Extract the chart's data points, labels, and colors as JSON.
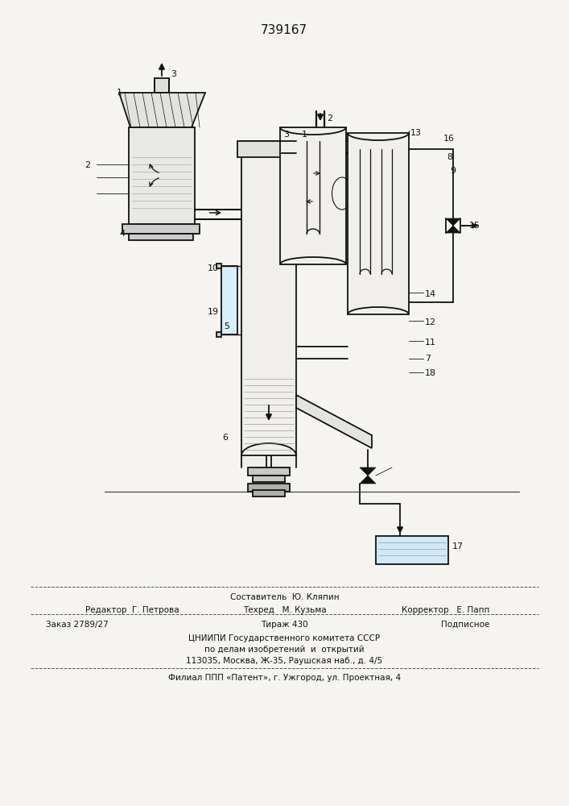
{
  "title": "739167",
  "bg_color": "#f5f4f0",
  "lc": "#111111",
  "lw": 1.3,
  "footer": [
    {
      "text": "Составитель  Ю. Кляпин",
      "xf": 0.5,
      "yf": 0.736,
      "ha": "center",
      "fs": 7.5
    },
    {
      "text": "Редактор  Г. Петрова",
      "xf": 0.15,
      "yf": 0.752,
      "ha": "left",
      "fs": 7.5
    },
    {
      "text": "Техред   М. Кузьма",
      "xf": 0.5,
      "yf": 0.752,
      "ha": "center",
      "fs": 7.5
    },
    {
      "text": "Корректор   Е. Папп",
      "xf": 0.86,
      "yf": 0.752,
      "ha": "right",
      "fs": 7.5
    },
    {
      "text": "Заказ 2789/27",
      "xf": 0.08,
      "yf": 0.77,
      "ha": "left",
      "fs": 7.5
    },
    {
      "text": "Тираж 430",
      "xf": 0.5,
      "yf": 0.77,
      "ha": "center",
      "fs": 7.5
    },
    {
      "text": "Подписное",
      "xf": 0.86,
      "yf": 0.77,
      "ha": "right",
      "fs": 7.5
    },
    {
      "text": "ЦНИИПИ Государственного комитета СССР",
      "xf": 0.5,
      "yf": 0.787,
      "ha": "center",
      "fs": 7.5
    },
    {
      "text": "по делам изобретений  и  открытий",
      "xf": 0.5,
      "yf": 0.801,
      "ha": "center",
      "fs": 7.5
    },
    {
      "text": "113035, Москва, Ж-35, Раушская наб., д. 4/5",
      "xf": 0.5,
      "yf": 0.815,
      "ha": "center",
      "fs": 7.5
    },
    {
      "text": "Филиал ППП «Патент», г. Ужгород, ул. Проектная, 4",
      "xf": 0.5,
      "yf": 0.836,
      "ha": "center",
      "fs": 7.5
    }
  ],
  "hline_y": [
    0.728,
    0.762,
    0.829
  ]
}
